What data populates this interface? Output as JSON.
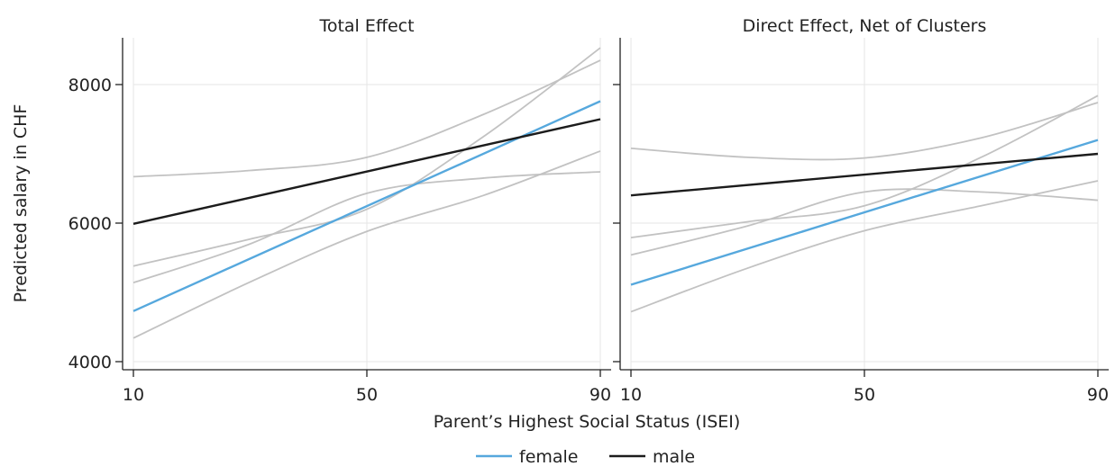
{
  "chart_data": {
    "type": "line",
    "ylabel": "Predicted salary in CHF",
    "xlabel": "Parent’s Highest Social Status (ISEI)",
    "xlim": [
      10,
      90
    ],
    "ylim": [
      4000,
      8600
    ],
    "xticks": [
      10,
      50,
      90
    ],
    "yticks": [
      4000,
      6000,
      8000
    ],
    "grid": true,
    "legend_position": "bottom",
    "colors": {
      "female": "#56a8dd",
      "male": "#1c1c1c",
      "cluster": "#c2c2c2"
    },
    "legend": [
      {
        "name": "female",
        "color": "#56a8dd"
      },
      {
        "name": "male",
        "color": "#1c1c1c"
      }
    ],
    "panels": [
      {
        "title": "Total Effect",
        "female": {
          "x": [
            10,
            90
          ],
          "y": [
            4730,
            7760
          ]
        },
        "male": {
          "x": [
            10,
            90
          ],
          "y": [
            5990,
            7500
          ]
        },
        "clusters": [
          {
            "x": [
              10,
              30,
              50,
              70,
              90
            ],
            "y": [
              6670,
              6760,
              6950,
              7570,
              8350
            ]
          },
          {
            "x": [
              10,
              30,
              50,
              70,
              90
            ],
            "y": [
              5380,
              5770,
              6200,
              7250,
              8530
            ]
          },
          {
            "x": [
              10,
              30,
              50,
              70,
              90
            ],
            "y": [
              5140,
              5700,
              6430,
              6650,
              6740
            ]
          },
          {
            "x": [
              10,
              30,
              50,
              70,
              90
            ],
            "y": [
              4340,
              5150,
              5880,
              6400,
              7040
            ]
          }
        ]
      },
      {
        "title": "Direct Effect, Net of Clusters",
        "female": {
          "x": [
            10,
            90
          ],
          "y": [
            5110,
            7200
          ]
        },
        "male": {
          "x": [
            10,
            90
          ],
          "y": [
            6400,
            7000
          ]
        },
        "clusters": [
          {
            "x": [
              10,
              30,
              50,
              70,
              90
            ],
            "y": [
              7080,
              6950,
              6940,
              7230,
              7740
            ]
          },
          {
            "x": [
              10,
              30,
              50,
              70,
              90
            ],
            "y": [
              5790,
              6020,
              6250,
              6950,
              7840
            ]
          },
          {
            "x": [
              10,
              30,
              50,
              70,
              90
            ],
            "y": [
              5540,
              5960,
              6450,
              6450,
              6330
            ]
          },
          {
            "x": [
              10,
              30,
              50,
              70,
              90
            ],
            "y": [
              4720,
              5350,
              5890,
              6250,
              6610
            ]
          }
        ]
      }
    ]
  }
}
